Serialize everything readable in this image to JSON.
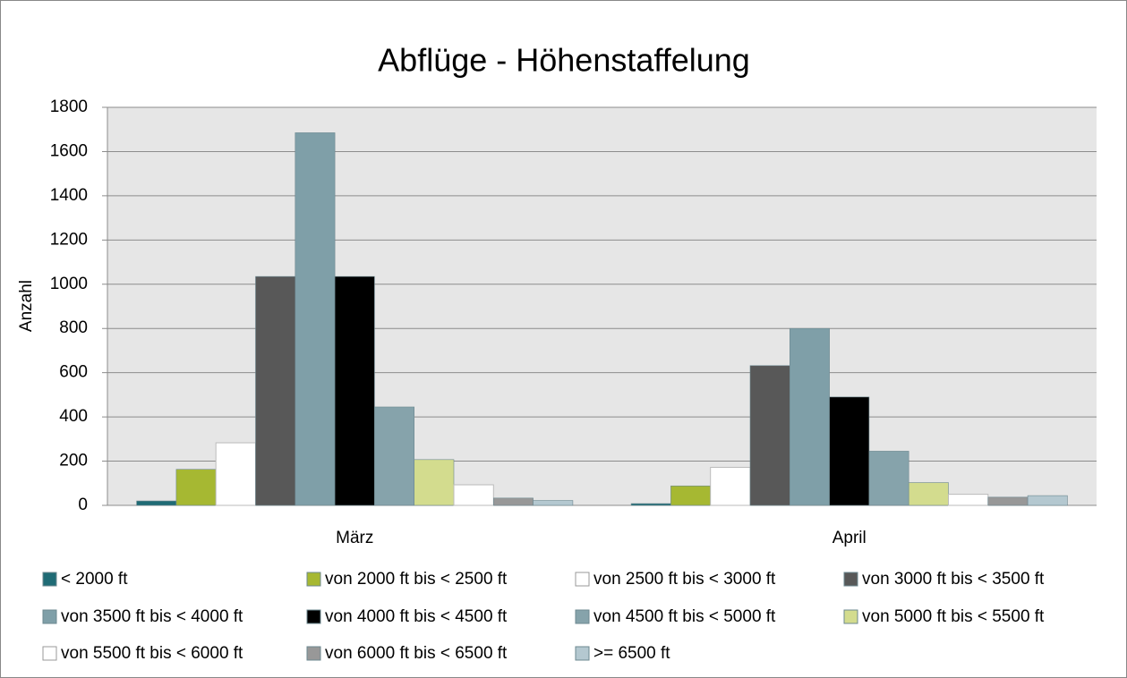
{
  "chart_data": {
    "type": "bar",
    "title": "Abflüge - Höhenstaffelung",
    "y_label": "Anzahl",
    "categories": [
      "März",
      "April"
    ],
    "series": [
      {
        "name": "< 2000 ft",
        "color": "#1f6b75",
        "values": [
          20,
          8
        ]
      },
      {
        "name": "von 2000 ft bis < 2500 ft",
        "color": "#a6b832",
        "values": [
          163,
          88
        ]
      },
      {
        "name": "von 2500 ft bis < 3000 ft",
        "color": "#ffffff",
        "values": [
          283,
          172
        ]
      },
      {
        "name": "von 3000 ft bis < 3500 ft",
        "color": "#585858",
        "values": [
          1035,
          632
        ]
      },
      {
        "name": "von 3500 ft bis < 4000 ft",
        "color": "#7f9fa8",
        "values": [
          1685,
          800
        ]
      },
      {
        "name": "von 4000 ft bis < 4500 ft",
        "color": "#000000",
        "values": [
          1035,
          490
        ]
      },
      {
        "name": "von 4500 ft bis < 5000 ft",
        "color": "#86a3ab",
        "values": [
          445,
          245
        ]
      },
      {
        "name": "von 5000 ft bis < 5500 ft",
        "color": "#d3dc8e",
        "values": [
          207,
          103
        ]
      },
      {
        "name": "von 5500 ft bis < 6000 ft",
        "color": "#ffffff",
        "values": [
          93,
          50
        ]
      },
      {
        "name": "von 6000 ft bis < 6500 ft",
        "color": "#989898",
        "values": [
          33,
          37
        ]
      },
      {
        "name": ">= 6500 ft",
        "color": "#b4c8d0",
        "values": [
          22,
          44
        ]
      }
    ],
    "ylim": [
      0,
      1800
    ],
    "yticks": [
      0,
      200,
      400,
      600,
      800,
      1000,
      1200,
      1400,
      1600,
      1800
    ],
    "grid": true
  }
}
